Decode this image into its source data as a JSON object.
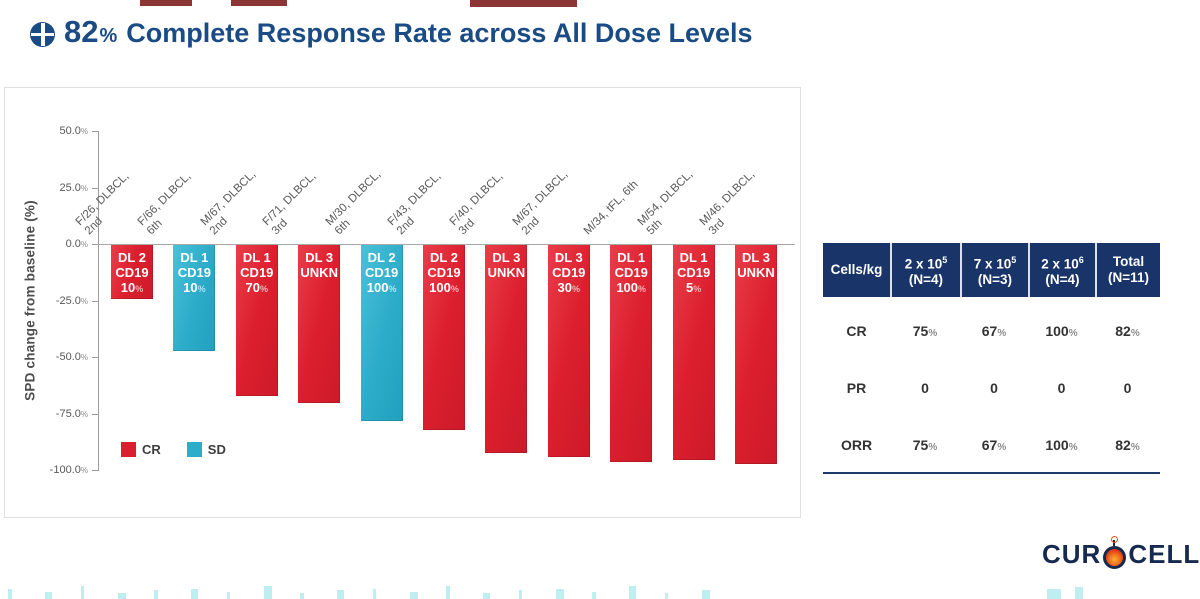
{
  "title": {
    "percent": "82",
    "percent_sign": "%",
    "text": "Complete Response Rate across All Dose Levels"
  },
  "colors": {
    "title_navy": "#1a4b85",
    "table_navy": "#183468",
    "cr_red": "#dc1f2e",
    "sd_cyan": "#2eadca"
  },
  "chart": {
    "y_axis_title": "SPD change from baseline (%)",
    "percent_sign": "%",
    "y_ticks": [
      "50.0",
      "25.0",
      "0.0",
      "-25.0",
      "-50.0",
      "-75.0",
      "-100.0"
    ],
    "legend": [
      {
        "label": "CR",
        "color": "#dc1f2e"
      },
      {
        "label": "SD",
        "color": "#2eadca"
      }
    ],
    "bars": [
      {
        "category_lines": [
          "F/26, DLBCL,",
          "2nd"
        ],
        "dose": "DL 2",
        "target": "CD19",
        "cd19_pct": "10",
        "response": "CR",
        "value": -24
      },
      {
        "category_lines": [
          "F/66, DLBCL,",
          "6th"
        ],
        "dose": "DL 1",
        "target": "CD19",
        "cd19_pct": "10",
        "response": "SD",
        "value": -47
      },
      {
        "category_lines": [
          "M/67, DLBCL,",
          "2nd"
        ],
        "dose": "DL 1",
        "target": "CD19",
        "cd19_pct": "70",
        "response": "CR",
        "value": -67
      },
      {
        "category_lines": [
          "F/71, DLBCL,",
          "3rd"
        ],
        "dose": "DL 3",
        "target": "UNKN",
        "cd19_pct": null,
        "response": "CR",
        "value": -70
      },
      {
        "category_lines": [
          "M/30, DLBCL,",
          "6th"
        ],
        "dose": "DL 2",
        "target": "CD19",
        "cd19_pct": "100",
        "response": "SD",
        "value": -78
      },
      {
        "category_lines": [
          "F/43, DLBCL,",
          "2nd"
        ],
        "dose": "DL 2",
        "target": "CD19",
        "cd19_pct": "100",
        "response": "CR",
        "value": -82
      },
      {
        "category_lines": [
          "F/40, DLBCL,",
          "3rd"
        ],
        "dose": "DL 3",
        "target": "UNKN",
        "cd19_pct": null,
        "response": "CR",
        "value": -92
      },
      {
        "category_lines": [
          "M/67, DLBCL,",
          "2nd"
        ],
        "dose": "DL 3",
        "target": "CD19",
        "cd19_pct": "30",
        "response": "CR",
        "value": -94
      },
      {
        "category_lines": [
          "M/34, tFL, 6th"
        ],
        "dose": "DL 1",
        "target": "CD19",
        "cd19_pct": "100",
        "response": "CR",
        "value": -96
      },
      {
        "category_lines": [
          "M/54, DLBCL,",
          "5th"
        ],
        "dose": "DL 1",
        "target": "CD19",
        "cd19_pct": "5",
        "response": "CR",
        "value": -95
      },
      {
        "category_lines": [
          "M/46, DLBCL,",
          "3rd"
        ],
        "dose": "DL 3",
        "target": "UNKN",
        "cd19_pct": null,
        "response": "CR",
        "value": -97
      }
    ]
  },
  "table": {
    "corner_label": "Cells/kg",
    "percent_sign": "%",
    "header": [
      {
        "base": "2 x 10",
        "sup": "5",
        "n": "(N=4)"
      },
      {
        "base": "7 x 10",
        "sup": "5",
        "n": "(N=3)"
      },
      {
        "base": "2 x 10",
        "sup": "6",
        "n": "(N=4)"
      },
      {
        "base": "Total",
        "sup": null,
        "n": "(N=11)"
      }
    ],
    "rows": [
      {
        "label": "CR",
        "values": [
          {
            "num": "75",
            "pct": true
          },
          {
            "num": "67",
            "pct": true
          },
          {
            "num": "100",
            "pct": true
          },
          {
            "num": "82",
            "pct": true
          }
        ]
      },
      {
        "label": "PR",
        "values": [
          {
            "num": "0",
            "pct": false
          },
          {
            "num": "0",
            "pct": false
          },
          {
            "num": "0",
            "pct": false
          },
          {
            "num": "0",
            "pct": false
          }
        ]
      },
      {
        "label": "ORR",
        "values": [
          {
            "num": "75",
            "pct": true
          },
          {
            "num": "67",
            "pct": true
          },
          {
            "num": "100",
            "pct": true
          },
          {
            "num": "82",
            "pct": true
          }
        ]
      }
    ]
  },
  "logo": {
    "left": "CUR",
    "right": "CELL"
  },
  "chart_data": [
    {
      "type": "bar",
      "subtype": "waterfall-best-response",
      "title": "82% Complete Response Rate across All Dose Levels",
      "categories": [
        "F/26, DLBCL, 2nd",
        "F/66, DLBCL, 6th",
        "M/67, DLBCL, 2nd",
        "F/71, DLBCL, 3rd",
        "M/30, DLBCL, 6th",
        "F/43, DLBCL, 2nd",
        "F/40, DLBCL, 3rd",
        "M/67, DLBCL, 2nd",
        "M/34, tFL, 6th",
        "M/54, DLBCL, 5th",
        "M/46, DLBCL, 3rd"
      ],
      "values": [
        -24,
        -47,
        -67,
        -70,
        -78,
        -82,
        -92,
        -94,
        -96,
        -95,
        -97
      ],
      "units": "percent",
      "bar_annotations": [
        [
          "DL 2",
          "CD19",
          "10%"
        ],
        [
          "DL 1",
          "CD19",
          "10%"
        ],
        [
          "DL 1",
          "CD19",
          "70%"
        ],
        [
          "DL 3",
          "UNKN"
        ],
        [
          "DL 2",
          "CD19",
          "100%"
        ],
        [
          "DL 2",
          "CD19",
          "100%"
        ],
        [
          "DL 3",
          "UNKN"
        ],
        [
          "DL 3",
          "CD19",
          "30%"
        ],
        [
          "DL 1",
          "CD19",
          "100%"
        ],
        [
          "DL 1",
          "CD19",
          "5%"
        ],
        [
          "DL 3",
          "UNKN"
        ]
      ],
      "responses": [
        "CR",
        "SD",
        "CR",
        "CR",
        "SD",
        "CR",
        "CR",
        "CR",
        "CR",
        "CR",
        "CR"
      ],
      "legend": [
        {
          "label": "CR",
          "color": "#dc1f2e"
        },
        {
          "label": "SD",
          "color": "#2eadca"
        }
      ],
      "legend_position": "inside-bottom-left",
      "xlabel": "",
      "ylabel": "SPD change from baseline (%)",
      "ylim": [
        -100,
        50
      ],
      "yticks": [
        "50.0%",
        "25.0%",
        "0.0%",
        "-25.0%",
        "-50.0%",
        "-75.0%",
        "-100.0%"
      ],
      "grid": false
    },
    {
      "type": "table",
      "columns": [
        "Cells/kg",
        "2 x 10^5 (N=4)",
        "7 x 10^5 (N=3)",
        "2 x 10^6 (N=4)",
        "Total (N=11)"
      ],
      "rows": [
        [
          "CR",
          "75%",
          "67%",
          "100%",
          "82%"
        ],
        [
          "PR",
          "0",
          "0",
          "0",
          "0"
        ],
        [
          "ORR",
          "75%",
          "67%",
          "100%",
          "82%"
        ]
      ]
    }
  ]
}
